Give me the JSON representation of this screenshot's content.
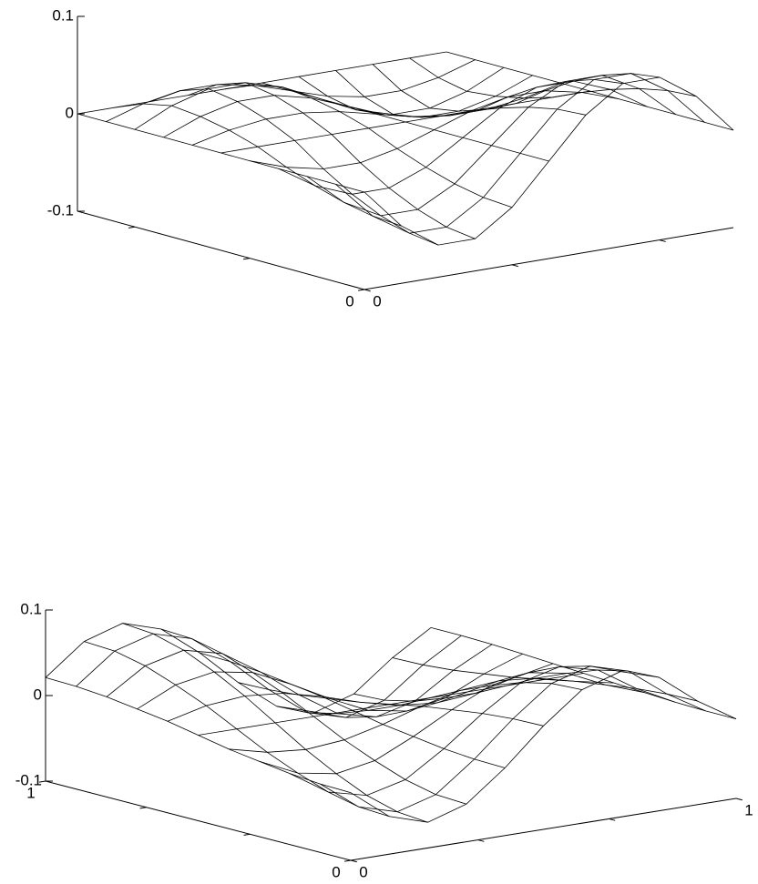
{
  "chart_data": [
    {
      "type": "surface",
      "color": "#000000",
      "x": [
        0,
        0.1,
        0.2,
        0.3,
        0.4,
        0.5,
        0.6,
        0.7,
        0.8,
        0.9,
        1
      ],
      "y": [
        0,
        0.1,
        0.2,
        0.3,
        0.4,
        0.5,
        0.6,
        0.7,
        0.8,
        0.9,
        1
      ],
      "z": [
        [
          0,
          -0.041,
          -0.067,
          -0.067,
          -0.041,
          0,
          0.041,
          0.067,
          0.067,
          0.041,
          0
        ],
        [
          0,
          -0.039,
          -0.063,
          -0.063,
          -0.039,
          0,
          0.039,
          0.063,
          0.063,
          0.039,
          0
        ],
        [
          0,
          -0.033,
          -0.053,
          -0.053,
          -0.033,
          0,
          0.033,
          0.053,
          0.053,
          0.033,
          0
        ],
        [
          0,
          -0.024,
          -0.039,
          -0.039,
          -0.024,
          0,
          0.024,
          0.039,
          0.039,
          0.024,
          0
        ],
        [
          0,
          -0.013,
          -0.021,
          -0.021,
          -0.013,
          0,
          0.013,
          0.021,
          0.021,
          0.013,
          0
        ],
        [
          0,
          0,
          0,
          0,
          0,
          0,
          0,
          0,
          0,
          0,
          0
        ],
        [
          0,
          0.009,
          0.014,
          0.014,
          0.009,
          0,
          -0.009,
          -0.014,
          -0.014,
          -0.009,
          0
        ],
        [
          0,
          0.015,
          0.024,
          0.024,
          0.015,
          0,
          -0.015,
          -0.024,
          -0.024,
          -0.015,
          0
        ],
        [
          0,
          0.018,
          0.029,
          0.029,
          0.018,
          0,
          -0.018,
          -0.029,
          -0.029,
          -0.018,
          0
        ],
        [
          0,
          0.012,
          0.019,
          0.019,
          0.012,
          0,
          -0.012,
          -0.019,
          -0.019,
          -0.012,
          0
        ],
        [
          0,
          0,
          0,
          0,
          0,
          0,
          0,
          0,
          0,
          0,
          0
        ]
      ],
      "xlim": [
        0,
        1
      ],
      "ylim": [
        0,
        1
      ],
      "zlim": [
        -0.1,
        0.1
      ],
      "xticks": [
        0
      ],
      "yticks": [
        0
      ],
      "zticks": [
        -0.1,
        0,
        0.1
      ],
      "xminorticks": [
        0.4,
        0.8
      ],
      "yminorticks": [
        0.4,
        0.8
      ]
    },
    {
      "type": "surface",
      "color": "#000000",
      "x": [
        0,
        0.1,
        0.2,
        0.3,
        0.4,
        0.5,
        0.6,
        0.7,
        0.8,
        0.9,
        1
      ],
      "y": [
        0,
        0.1,
        0.2,
        0.3,
        0.4,
        0.5,
        0.6,
        0.7,
        0.8,
        0.9,
        1
      ],
      "z": [
        [
          -0.021,
          -0.056,
          -0.07,
          -0.056,
          -0.021,
          0.021,
          0.056,
          0.07,
          0.056,
          0.021,
          -0.007
        ],
        [
          -0.02,
          -0.054,
          -0.067,
          -0.054,
          -0.02,
          0.02,
          0.054,
          0.067,
          0.054,
          0.02,
          -0.007
        ],
        [
          -0.017,
          -0.046,
          -0.057,
          -0.046,
          -0.017,
          0.017,
          0.046,
          0.057,
          0.046,
          0.017,
          -0.006
        ],
        [
          -0.012,
          -0.033,
          -0.041,
          -0.033,
          -0.012,
          0.012,
          0.033,
          0.041,
          0.033,
          0.012,
          -0.004
        ],
        [
          -0.007,
          -0.018,
          -0.022,
          -0.018,
          -0.007,
          0.007,
          0.018,
          0.022,
          0.018,
          0.007,
          -0.002
        ],
        [
          0,
          0,
          0,
          0,
          0,
          0,
          0,
          0,
          0,
          0,
          0
        ],
        [
          0.007,
          0.018,
          0.022,
          0.018,
          0.007,
          -0.007,
          -0.018,
          -0.022,
          -0.018,
          -0.007,
          0.002
        ],
        [
          0.012,
          0.033,
          0.041,
          0.033,
          0.012,
          -0.012,
          -0.033,
          -0.041,
          -0.033,
          -0.012,
          0.004
        ],
        [
          0.017,
          0.046,
          0.057,
          0.046,
          0.017,
          -0.017,
          -0.046,
          -0.057,
          -0.046,
          -0.017,
          0.006
        ],
        [
          0.02,
          0.054,
          0.067,
          0.054,
          0.02,
          -0.02,
          -0.054,
          -0.067,
          -0.054,
          -0.02,
          0.007
        ],
        [
          0.021,
          0.056,
          0.07,
          0.056,
          0.021,
          -0.021,
          -0.056,
          -0.07,
          -0.056,
          -0.021,
          0.007
        ]
      ],
      "xlim": [
        0,
        1
      ],
      "ylim": [
        0,
        1
      ],
      "zlim": [
        -0.1,
        0.1
      ],
      "xticks": [
        0,
        1
      ],
      "yticks": [
        0,
        1
      ],
      "zticks": [
        -0.1,
        0,
        0.1
      ],
      "xminorticks": [
        0.33,
        0.67
      ],
      "yminorticks": [
        0.33,
        0.67
      ]
    }
  ]
}
